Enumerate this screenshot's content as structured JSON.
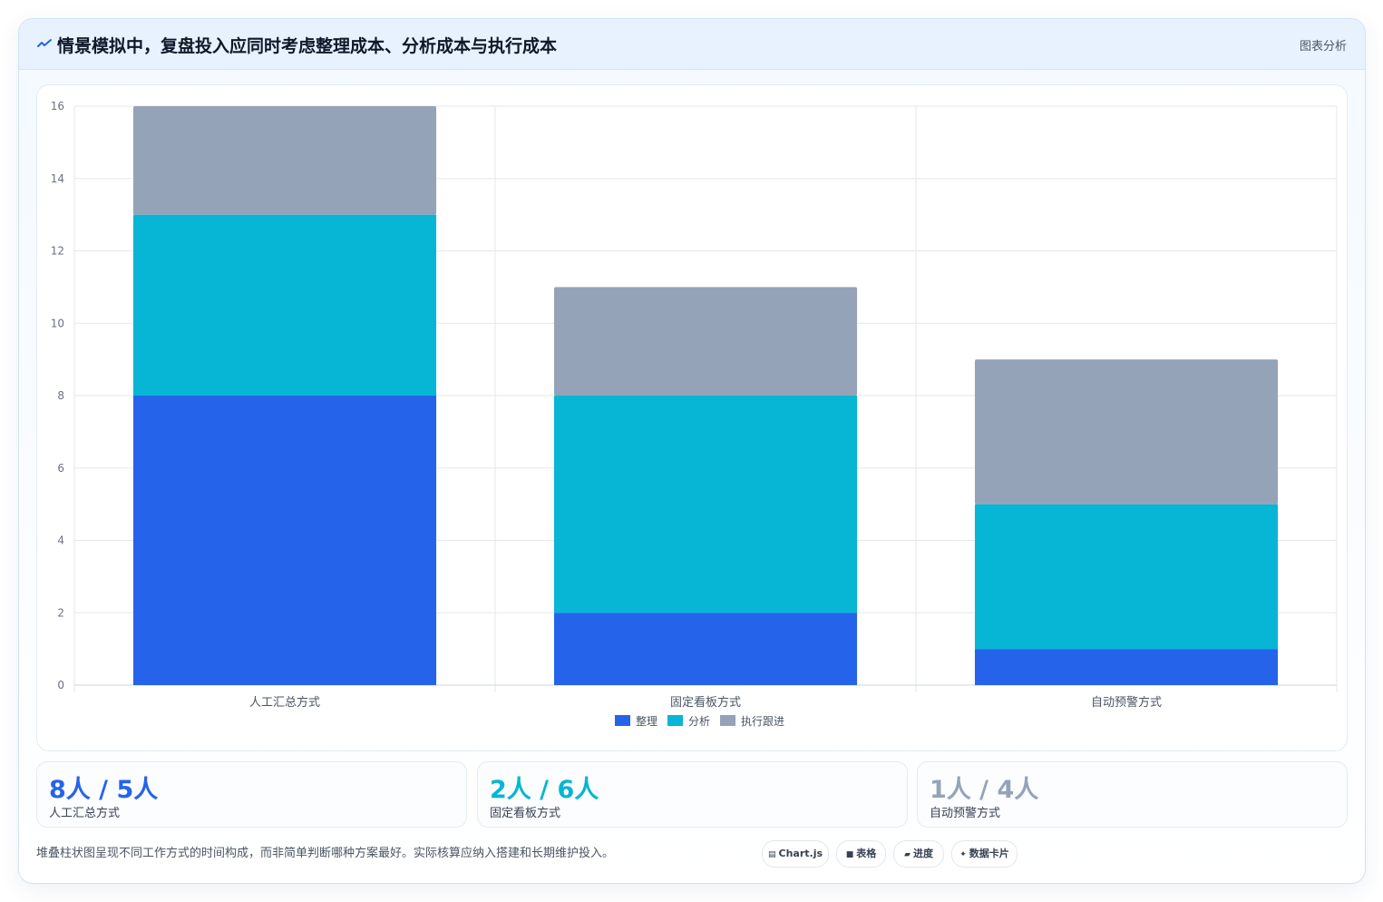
{
  "header": {
    "icon": "trend-line-icon",
    "title": "情景模拟中，复盘投入应同时考虑整理成本、分析成本与执行成本",
    "tag": "图表分析"
  },
  "chart_data": {
    "type": "bar",
    "stacked": true,
    "categories": [
      "人工汇总方式",
      "固定看板方式",
      "自动预警方式"
    ],
    "series": [
      {
        "name": "整理",
        "values": [
          8,
          2,
          1
        ],
        "color": "#2563eb"
      },
      {
        "name": "分析",
        "values": [
          5,
          6,
          4
        ],
        "color": "#06b6d4"
      },
      {
        "name": "执行跟进",
        "values": [
          3,
          3,
          4
        ],
        "color": "#94a3b8"
      }
    ],
    "ylim": [
      0,
      16
    ],
    "yticks": [
      "0",
      "2",
      "4",
      "6",
      "8",
      "10",
      "12",
      "14",
      "16"
    ],
    "grid": true,
    "legend_position": "bottom"
  },
  "stats": [
    {
      "value": "8人 / 5人",
      "label": "人工汇总方式",
      "color": "#2563eb"
    },
    {
      "value": "2人 / 6人",
      "label": "固定看板方式",
      "color": "#06b6d4"
    },
    {
      "value": "1人 / 4人",
      "label": "自动预警方式",
      "color": "#94a3b8"
    }
  ],
  "footnote": "堆叠柱状图呈现不同工作方式的时间构成，而非简单判断哪种方案最好。实际核算应纳入搭建和长期维护投入。",
  "chips": [
    {
      "icon": "▤",
      "label": "Chart.js"
    },
    {
      "icon": "■",
      "label": "表格"
    },
    {
      "icon": "▰",
      "label": "进度"
    },
    {
      "icon": "✦",
      "label": "数据卡片"
    }
  ]
}
